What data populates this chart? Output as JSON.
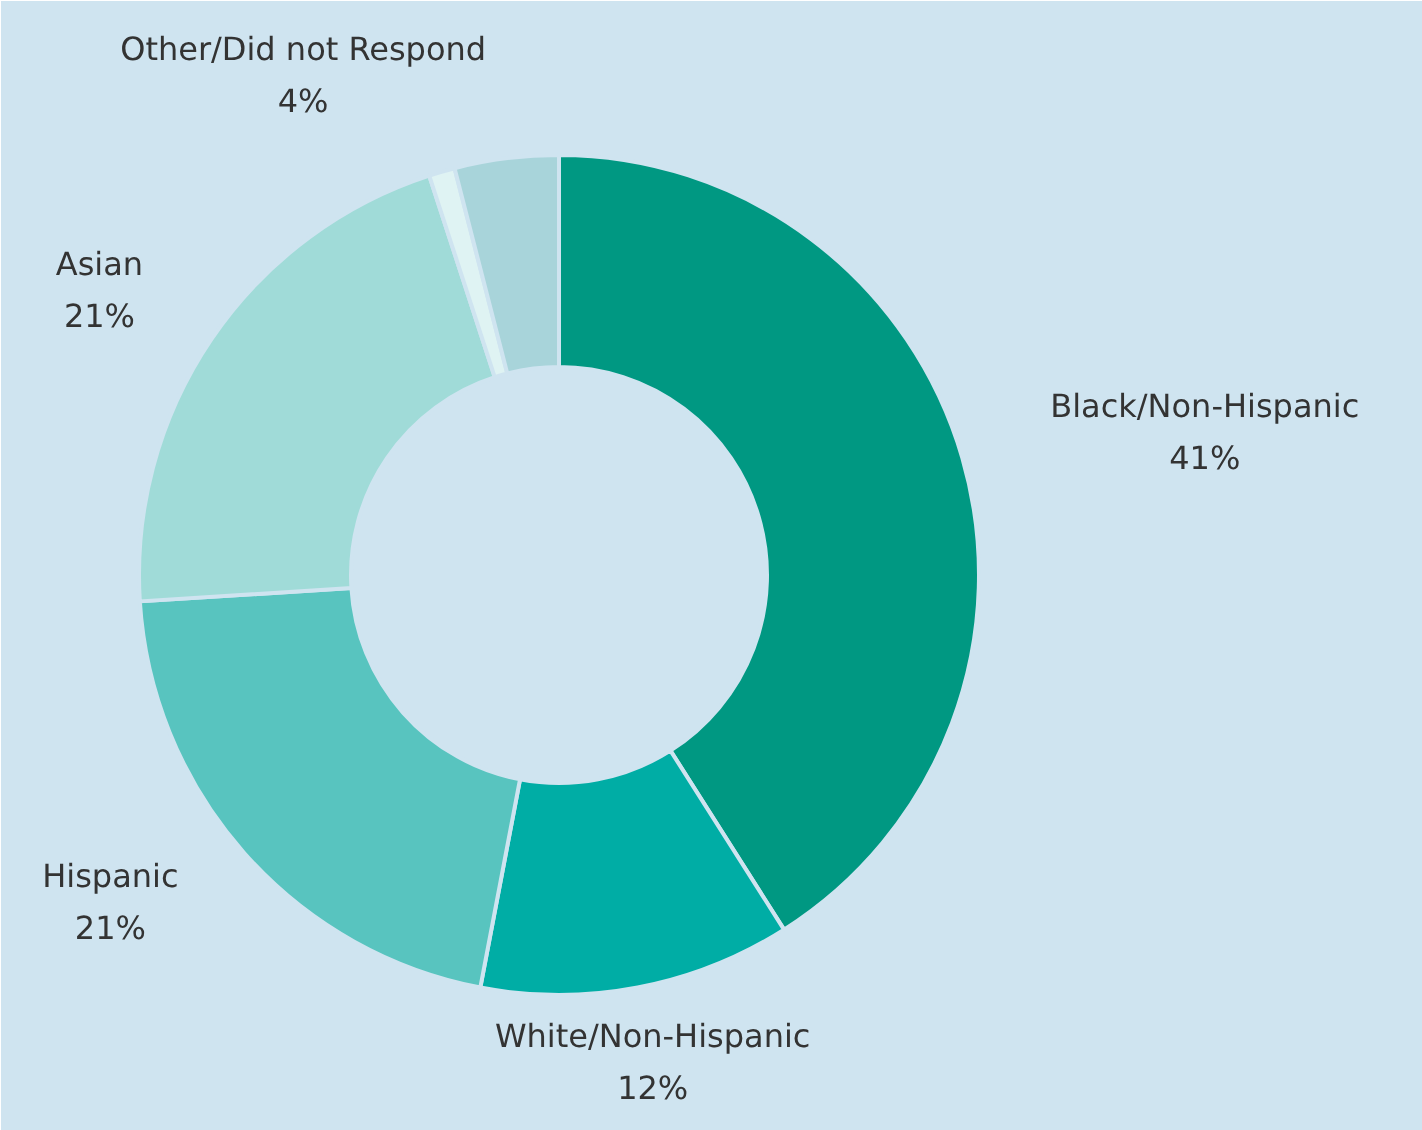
{
  "chart_data": {
    "type": "donut",
    "categories": [
      "Black/Non-Hispanic",
      "White/Non-Hispanic",
      "Hispanic",
      "Asian",
      null,
      "Other/Did not Respond"
    ],
    "values": [
      41,
      12,
      21,
      21,
      1,
      4
    ],
    "value_labels": [
      "41%",
      "12%",
      "21%",
      "21%",
      null,
      "4%"
    ],
    "colors": [
      "#009882",
      "#00ada5",
      "#58c4bf",
      "#a0dbd8",
      "#dff3f3",
      "#a8d4da"
    ]
  }
}
